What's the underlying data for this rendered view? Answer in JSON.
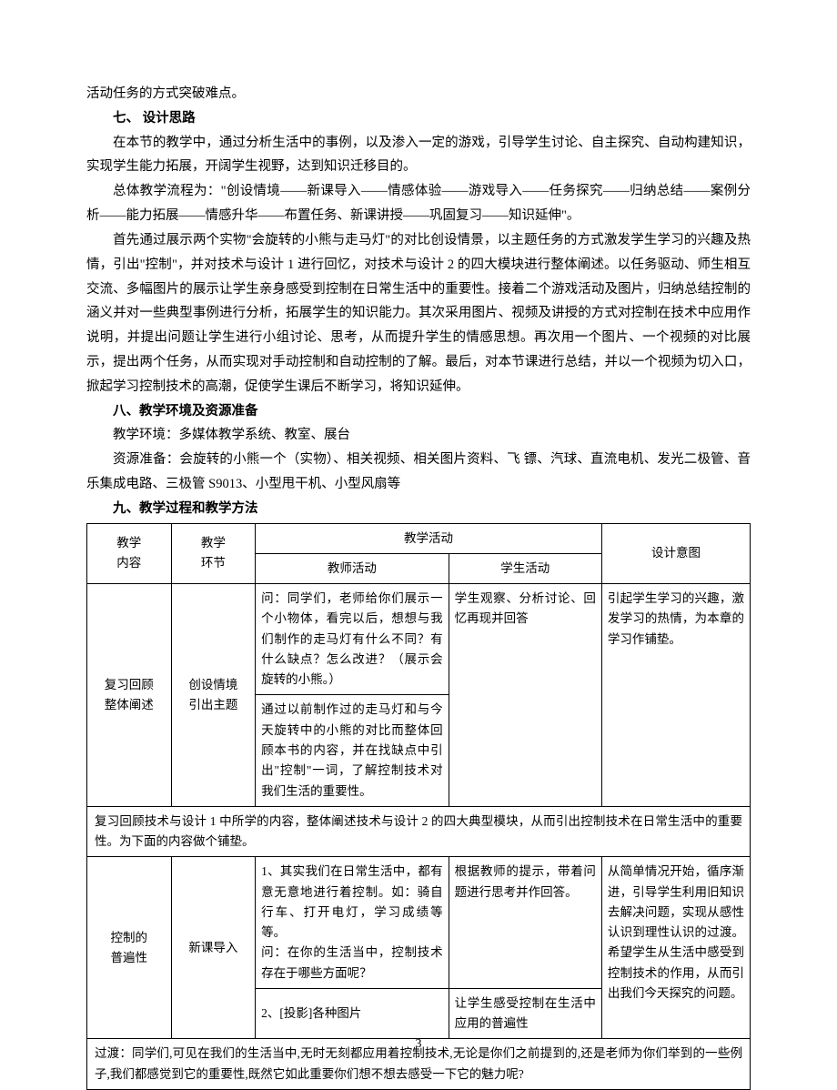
{
  "intro_line": "活动任务的方式突破难点。",
  "sections": {
    "s7": {
      "heading": "七、 设计思路",
      "p1": "在本节的教学中，通过分析生活中的事例，以及渗入一定的游戏，引导学生讨论、自主探究、自动构建知识，实现学生能力拓展，开阔学生视野，达到知识迁移目的。",
      "p2": "总体教学流程为：\"创设情境——新课导入——情感体验——游戏导入——任务探究——归纳总结——案例分析——能力拓展——情感升华——布置任务、新课讲授——巩固复习——知识延伸\"。",
      "p3": "首先通过展示两个实物\"会旋转的小熊与走马灯\"的对比创设情景，以主题任务的方式激发学生学习的兴趣及热情，引出\"控制\"，并对技术与设计 1 进行回忆，对技术与设计 2 的四大模块进行整体阐述。以任务驱动、师生相互交流、多幅图片的展示让学生亲身感受到控制在日常生活中的重要性。接着二个游戏活动及图片，归纳总结控制的涵义并对一些典型事例进行分析，拓展学生的知识能力。其次采用图片、视频及讲授的方式对控制在技术中应用作说明，并提出问题让学生进行小组讨论、思考，从而提升学生的情感思想。再次用一个图片、一个视频的对比展示，提出两个任务，从而实现对手动控制和自动控制的了解。最后，对本节课进行总结，并以一个视频为切入口，掀起学习控制技术的高潮，促使学生课后不断学习，将知识延伸。"
    },
    "s8": {
      "heading": "八、教学环境及资源准备",
      "p1": "教学环境：多媒体教学系统、教室、展台",
      "p2": "资源准备：会旋转的小熊一个（实物）、相关视频、相关图片资料、飞 镖、汽球、直流电机、发光二极管、音乐集成电路、三极管 S9013、小型甩干机、小型风扇等"
    },
    "s9": {
      "heading": "九、教学过程和教学方法"
    }
  },
  "table": {
    "headers": {
      "content": "教学\n内容",
      "stage": "教学\n环节",
      "activity": "教学活动",
      "teacher": "教师活动",
      "student": "学生活动",
      "intent": "设计意图"
    },
    "rows": [
      {
        "content": "复习回顾\n整体阐述",
        "stage": "创设情境\n引出主题",
        "teacher1": "问：同学们，老师给你们展示一个小物体，看完以后，想想与我们制作的走马灯有什么不同？有什么缺点？怎么改进？（展示会旋转的小熊。）",
        "teacher2": "通过以前制作过的走马灯和与今天旋转中的小熊的对比而整体回顾本书的内容，并在找缺点中引出\"控制\"一词，了解控制技术对我们生活的重要性。",
        "student1": "学生观察、分析讨论、回忆再现并回答",
        "intent1": "引起学生学习的兴趣，激发学习的热情，为本章的学习作铺垫。"
      }
    ],
    "summary1": "复习回顾技术与设计 1 中所学的内容，整体阐述技术与设计 2 的四大典型模块，从而引出控制技术在日常生活中的重要性。为下面的内容做个铺垫。",
    "rows2": [
      {
        "content": "控制的\n普遍性",
        "stage": "新课导入",
        "teacher1": "1、其实我们在日常生活中，都有意无意地进行着控制。如：骑自行车、打开电灯，学习成绩等等。\n问：在你的生活当中，控制技术存在于哪些方面呢？",
        "teacher2": "2、[投影]各种图片",
        "student1": "根据教师的提示，带着问题进行思考并作回答。",
        "student2": "让学生感受控制在生活中应用的普遍性",
        "intent1": "从简单情况开始，循序渐进，引导学生利用旧知识去解决问题，实现从感性认识到理性认识的过渡。希望学生从生活中感受到控制技术的作用，从而引出我们今天探究的问题。"
      }
    ],
    "summary2": "过渡：同学们,可见在我们的生活当中,无时无刻都应用着控制技术,无论是你们之前提到的,还是老师为你们举到的一些例子,我们都感觉到它的重要性,既然它如此重要你们想不想去感受一下它的魅力呢?"
  },
  "page_number": "3"
}
